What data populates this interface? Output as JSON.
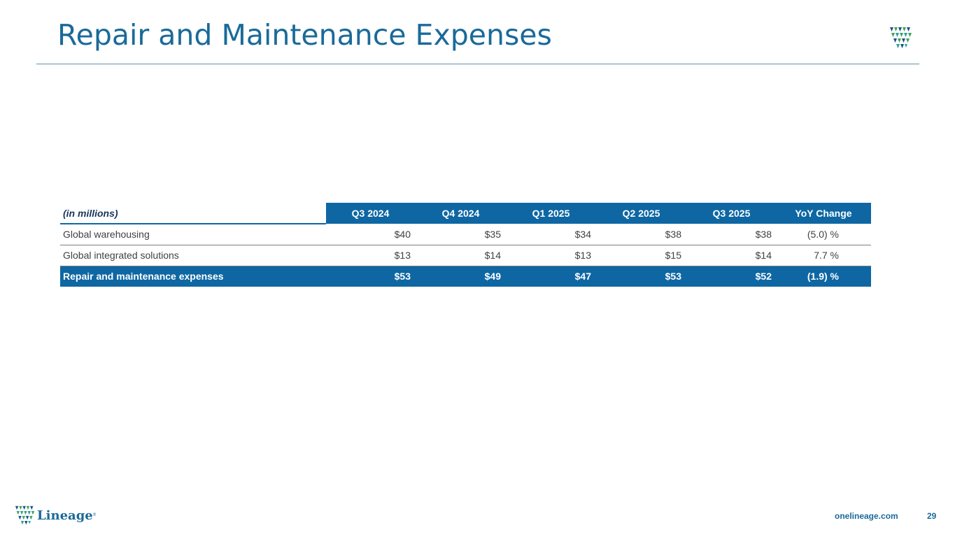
{
  "slide": {
    "title": "Repair and Maintenance Expenses"
  },
  "table": {
    "unit_label": "(in millions)",
    "columns": [
      "Q3 2024",
      "Q4 2024",
      "Q1 2025",
      "Q2 2025",
      "Q3 2025",
      "YoY  Change"
    ],
    "rows": [
      {
        "label": "Global warehousing",
        "values": [
          "$40",
          "$35",
          "$34",
          "$38",
          "$38"
        ],
        "yoy": "(5.0) %"
      },
      {
        "label": "Global integrated solutions",
        "values": [
          "$13",
          "$14",
          "$13",
          "$15",
          "$14"
        ],
        "yoy": "7.7 %"
      }
    ],
    "total": {
      "label": "Repair and maintenance expenses",
      "values": [
        "$53",
        "$49",
        "$47",
        "$53",
        "$52"
      ],
      "yoy": "(1.9) %"
    }
  },
  "footer": {
    "brand": "Lineage",
    "website": "onelineage.com",
    "page_number": "29"
  },
  "colors": {
    "brand_blue": "#1a6a99",
    "table_blue": "#0e67a3",
    "logo_blue": "#1b4f8a",
    "logo_green": "#3aa35a",
    "logo_teal": "#2a9d9f"
  },
  "icons": {
    "top_logo": "lineage-shield-icon",
    "footer_logo": "lineage-shield-icon"
  }
}
